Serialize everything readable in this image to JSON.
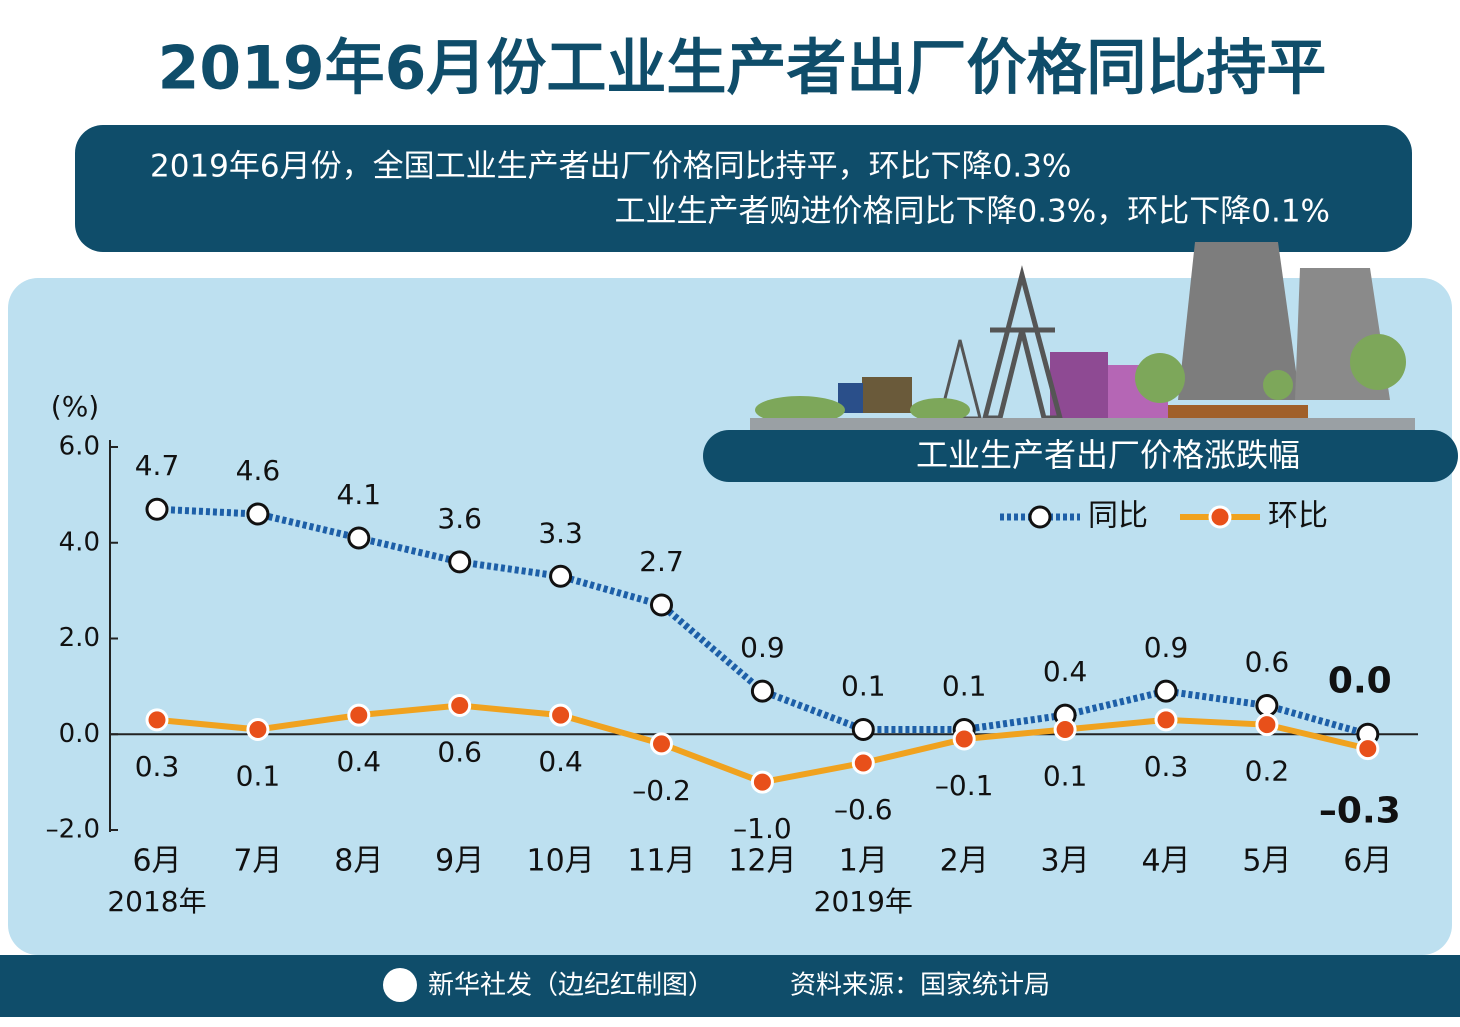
{
  "chart_data": {
    "type": "line",
    "title": "2019年6月份工业生产者出厂价格同比持平",
    "subtitle": [
      "2019年6月份，全国工业生产者出厂价格同比持平，环比下降0.3%",
      "工业生产者购进价格同比下降0.3%，环比下降0.1%"
    ],
    "chart_title": "工业生产者出厂价格涨跌幅",
    "y_label": "(%)",
    "categories": [
      "6月",
      "7月",
      "8月",
      "9月",
      "10月",
      "11月",
      "12月",
      "1月",
      "2月",
      "3月",
      "4月",
      "5月",
      "6月"
    ],
    "annotations": [
      "2018年",
      "2019年"
    ],
    "series": [
      {
        "name": "同比",
        "color": "#1d5fa8",
        "values": [
          4.7,
          4.6,
          4.1,
          3.6,
          3.3,
          2.7,
          0.9,
          0.1,
          0.1,
          0.4,
          0.9,
          0.6,
          0.0
        ],
        "value_labels": [
          "4.7",
          "4.6",
          "4.1",
          "3.6",
          "3.3",
          "2.7",
          "0.9",
          "0.1",
          "0.1",
          "0.4",
          "0.9",
          "0.6",
          "0.0"
        ]
      },
      {
        "name": "环比",
        "color": "#f0a21f",
        "values": [
          0.3,
          0.1,
          0.4,
          0.6,
          0.4,
          -0.2,
          -1.0,
          -0.6,
          -0.1,
          0.1,
          0.3,
          0.2,
          -0.3
        ],
        "value_labels": [
          "0.3",
          "0.1",
          "0.4",
          "0.6",
          "0.4",
          "–0.2",
          "–1.0",
          "–0.6",
          "–0.1",
          "0.1",
          "0.3",
          "0.2",
          "–0.3"
        ]
      }
    ],
    "ylim": [
      -2,
      6
    ],
    "yticks": [
      {
        "value": 6,
        "label": "6.0"
      },
      {
        "value": 4,
        "label": "4.0"
      },
      {
        "value": 2,
        "label": "2.0"
      },
      {
        "value": 0,
        "label": "0.0"
      },
      {
        "value": -2,
        "label": "–2.0"
      }
    ],
    "legend": "upper right",
    "footer": [
      "新华社发（边纪红制图）",
      "资料来源：国家统计局"
    ]
  }
}
